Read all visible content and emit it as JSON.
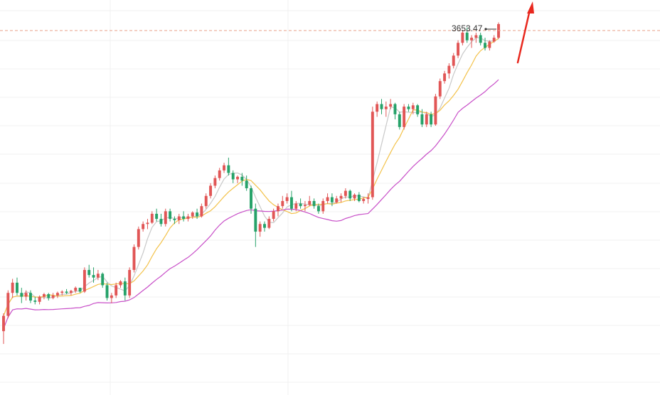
{
  "colors": {
    "up": "#e15656",
    "down": "#26a269",
    "ma_short": "#c8c8c8",
    "ma_mid": "#f3c24a",
    "ma_long": "#c84fc8",
    "grid": "#f0f0f0",
    "last_price_line": "#e8a08a",
    "arrow": "#e8281e"
  },
  "chart_data": {
    "type": "candlestick",
    "last_price": "3653.47",
    "grid": true,
    "ylim": [
      2300,
      3720
    ],
    "candles": [
      [
        2450,
        2520,
        2400,
        2510
      ],
      [
        2510,
        2610,
        2500,
        2600
      ],
      [
        2600,
        2655,
        2580,
        2640
      ],
      [
        2640,
        2660,
        2590,
        2600
      ],
      [
        2600,
        2620,
        2560,
        2585
      ],
      [
        2585,
        2610,
        2570,
        2600
      ],
      [
        2600,
        2610,
        2560,
        2570
      ],
      [
        2570,
        2585,
        2555,
        2565
      ],
      [
        2565,
        2590,
        2555,
        2585
      ],
      [
        2585,
        2600,
        2575,
        2595
      ],
      [
        2595,
        2600,
        2570,
        2580
      ],
      [
        2580,
        2600,
        2575,
        2590
      ],
      [
        2590,
        2605,
        2580,
        2600
      ],
      [
        2600,
        2610,
        2590,
        2605
      ],
      [
        2605,
        2615,
        2595,
        2600
      ],
      [
        2600,
        2612,
        2590,
        2608
      ],
      [
        2608,
        2625,
        2600,
        2620
      ],
      [
        2620,
        2620,
        2600,
        2605
      ],
      [
        2605,
        2700,
        2600,
        2690
      ],
      [
        2690,
        2710,
        2660,
        2670
      ],
      [
        2670,
        2700,
        2640,
        2660
      ],
      [
        2660,
        2690,
        2650,
        2675
      ],
      [
        2675,
        2680,
        2620,
        2630
      ],
      [
        2630,
        2640,
        2570,
        2580
      ],
      [
        2580,
        2600,
        2560,
        2590
      ],
      [
        2590,
        2640,
        2580,
        2630
      ],
      [
        2630,
        2650,
        2620,
        2645
      ],
      [
        2645,
        2660,
        2570,
        2590
      ],
      [
        2590,
        2700,
        2580,
        2690
      ],
      [
        2690,
        2790,
        2680,
        2780
      ],
      [
        2780,
        2860,
        2770,
        2850
      ],
      [
        2850,
        2880,
        2840,
        2870
      ],
      [
        2870,
        2890,
        2850,
        2875
      ],
      [
        2875,
        2920,
        2870,
        2910
      ],
      [
        2910,
        2930,
        2880,
        2890
      ],
      [
        2890,
        2910,
        2860,
        2870
      ],
      [
        2870,
        2930,
        2860,
        2920
      ],
      [
        2920,
        2930,
        2880,
        2890
      ],
      [
        2890,
        2900,
        2870,
        2885
      ],
      [
        2885,
        2910,
        2870,
        2900
      ],
      [
        2900,
        2920,
        2880,
        2890
      ],
      [
        2890,
        2910,
        2880,
        2900
      ],
      [
        2900,
        2920,
        2890,
        2915
      ],
      [
        2915,
        2930,
        2890,
        2900
      ],
      [
        2900,
        2950,
        2895,
        2940
      ],
      [
        2940,
        2990,
        2930,
        2980
      ],
      [
        2980,
        3030,
        2970,
        3020
      ],
      [
        3020,
        3060,
        3010,
        3050
      ],
      [
        3050,
        3090,
        3040,
        3080
      ],
      [
        3080,
        3110,
        3070,
        3100
      ],
      [
        3100,
        3130,
        3060,
        3070
      ],
      [
        3070,
        3080,
        3030,
        3045
      ],
      [
        3045,
        3060,
        3030,
        3055
      ],
      [
        3055,
        3070,
        3020,
        3040
      ],
      [
        3040,
        3060,
        3000,
        3010
      ],
      [
        3010,
        3020,
        2910,
        2930
      ],
      [
        2930,
        2950,
        2780,
        2840
      ],
      [
        2840,
        2880,
        2820,
        2870
      ],
      [
        2870,
        2880,
        2840,
        2855
      ],
      [
        2855,
        2900,
        2850,
        2890
      ],
      [
        2890,
        2930,
        2880,
        2920
      ],
      [
        2920,
        2950,
        2900,
        2940
      ],
      [
        2940,
        2980,
        2930,
        2960
      ],
      [
        2960,
        2990,
        2950,
        2975
      ],
      [
        2975,
        3000,
        2920,
        2930
      ],
      [
        2930,
        2960,
        2920,
        2950
      ],
      [
        2950,
        2970,
        2930,
        2940
      ],
      [
        2940,
        2960,
        2920,
        2945
      ],
      [
        2945,
        2980,
        2940,
        2960
      ],
      [
        2960,
        2970,
        2930,
        2940
      ],
      [
        2940,
        2950,
        2910,
        2920
      ],
      [
        2920,
        2970,
        2910,
        2960
      ],
      [
        2960,
        2990,
        2950,
        2975
      ],
      [
        2975,
        2990,
        2940,
        2955
      ],
      [
        2955,
        2980,
        2950,
        2970
      ],
      [
        2970,
        2990,
        2955,
        2980
      ],
      [
        2980,
        3010,
        2970,
        3000
      ],
      [
        3000,
        3005,
        2960,
        2970
      ],
      [
        2970,
        2990,
        2960,
        2985
      ],
      [
        2985,
        2995,
        2955,
        2960
      ],
      [
        2960,
        2975,
        2950,
        2968
      ],
      [
        2968,
        2990,
        2950,
        2975
      ],
      [
        2975,
        3330,
        2965,
        3310
      ],
      [
        3310,
        3350,
        3290,
        3340
      ],
      [
        3340,
        3360,
        3300,
        3320
      ],
      [
        3320,
        3350,
        3290,
        3330
      ],
      [
        3330,
        3360,
        3320,
        3340
      ],
      [
        3340,
        3345,
        3280,
        3300
      ],
      [
        3300,
        3310,
        3240,
        3250
      ],
      [
        3250,
        3340,
        3240,
        3330
      ],
      [
        3330,
        3340,
        3310,
        3320
      ],
      [
        3320,
        3345,
        3300,
        3335
      ],
      [
        3335,
        3340,
        3290,
        3300
      ],
      [
        3300,
        3320,
        3250,
        3260
      ],
      [
        3260,
        3310,
        3250,
        3300
      ],
      [
        3300,
        3310,
        3250,
        3260
      ],
      [
        3260,
        3380,
        3255,
        3370
      ],
      [
        3370,
        3440,
        3360,
        3430
      ],
      [
        3430,
        3470,
        3420,
        3460
      ],
      [
        3460,
        3500,
        3440,
        3490
      ],
      [
        3490,
        3540,
        3480,
        3530
      ],
      [
        3530,
        3590,
        3520,
        3580
      ],
      [
        3580,
        3630,
        3570,
        3620
      ],
      [
        3620,
        3640,
        3580,
        3590
      ],
      [
        3590,
        3610,
        3560,
        3600
      ],
      [
        3600,
        3620,
        3580,
        3610
      ],
      [
        3610,
        3620,
        3570,
        3580
      ],
      [
        3580,
        3600,
        3550,
        3560
      ],
      [
        3560,
        3590,
        3550,
        3585
      ],
      [
        3585,
        3610,
        3580,
        3600
      ],
      [
        3600,
        3660,
        3595,
        3653.47
      ]
    ]
  }
}
